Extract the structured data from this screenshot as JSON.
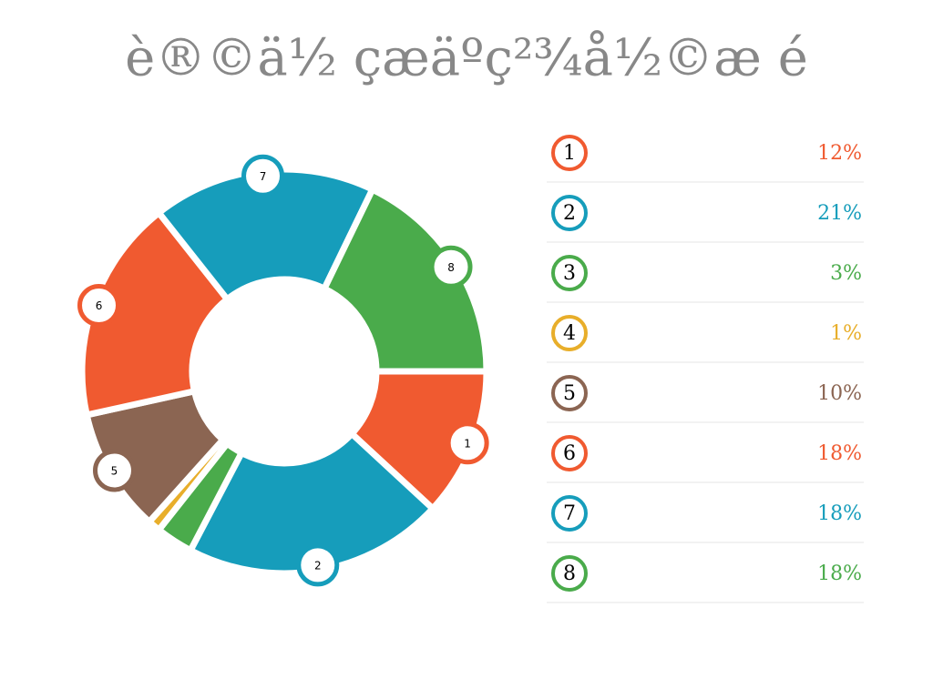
{
  "chart_data": {
    "type": "donut",
    "title": "è®©ä½ çæäºç²¾å½©æ é",
    "categories": [
      "1",
      "2",
      "3",
      "4",
      "5",
      "6",
      "7",
      "8"
    ],
    "values": [
      12,
      21,
      3,
      1,
      10,
      18,
      18,
      18
    ],
    "value_labels": [
      "12%",
      "21%",
      "3%",
      "1%",
      "10%",
      "18%",
      "18%",
      "18%"
    ],
    "colors": [
      "#f05a30",
      "#169dbb",
      "#4aab4b",
      "#e8ae2a",
      "#8b6552",
      "#f05a30",
      "#169dbb",
      "#4aab4b"
    ]
  }
}
